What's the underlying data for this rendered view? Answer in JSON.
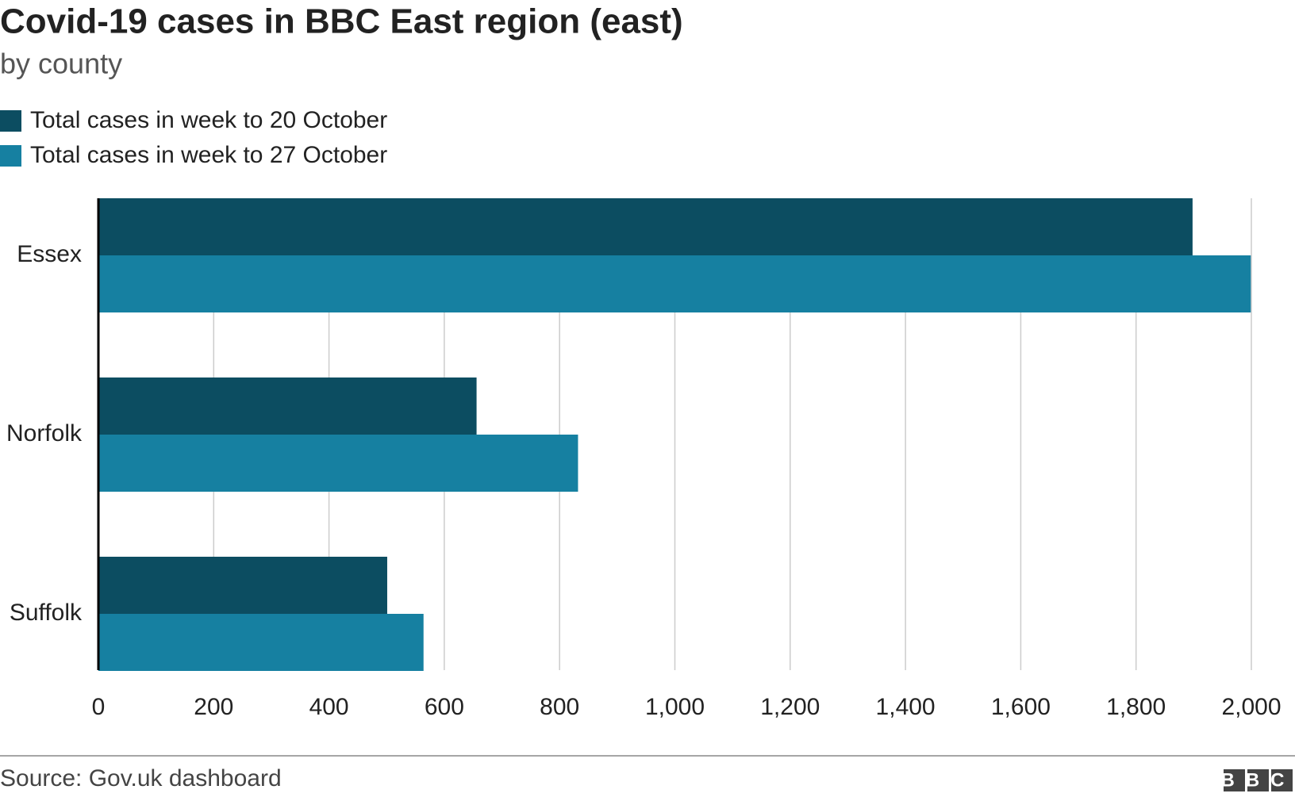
{
  "chart_data": {
    "type": "bar",
    "orientation": "horizontal",
    "title": "Covid-19 cases in BBC East region (east)",
    "subtitle": "by county",
    "categories": [
      "Essex",
      "Norfolk",
      "Suffolk"
    ],
    "series": [
      {
        "name": "Total cases in week to 20 October",
        "color": "#0c4d61",
        "values": [
          1898,
          656,
          501
        ]
      },
      {
        "name": "Total cases in week to 27 October",
        "color": "#1680a1",
        "values": [
          1999,
          832,
          564
        ]
      }
    ],
    "xlim": [
      0,
      2000
    ],
    "xticks": [
      0,
      200,
      400,
      600,
      800,
      {
        "value": 1000,
        "label": "1,000"
      },
      {
        "value": 1200,
        "label": "1,200"
      },
      {
        "value": 1400,
        "label": "1,400"
      },
      {
        "value": 1600,
        "label": "1,600"
      },
      {
        "value": 1800,
        "label": "1,800"
      },
      {
        "value": 2000,
        "label": "2,000"
      }
    ],
    "grid": true,
    "source": "Source: Gov.uk dashboard",
    "logo": "BBC"
  }
}
